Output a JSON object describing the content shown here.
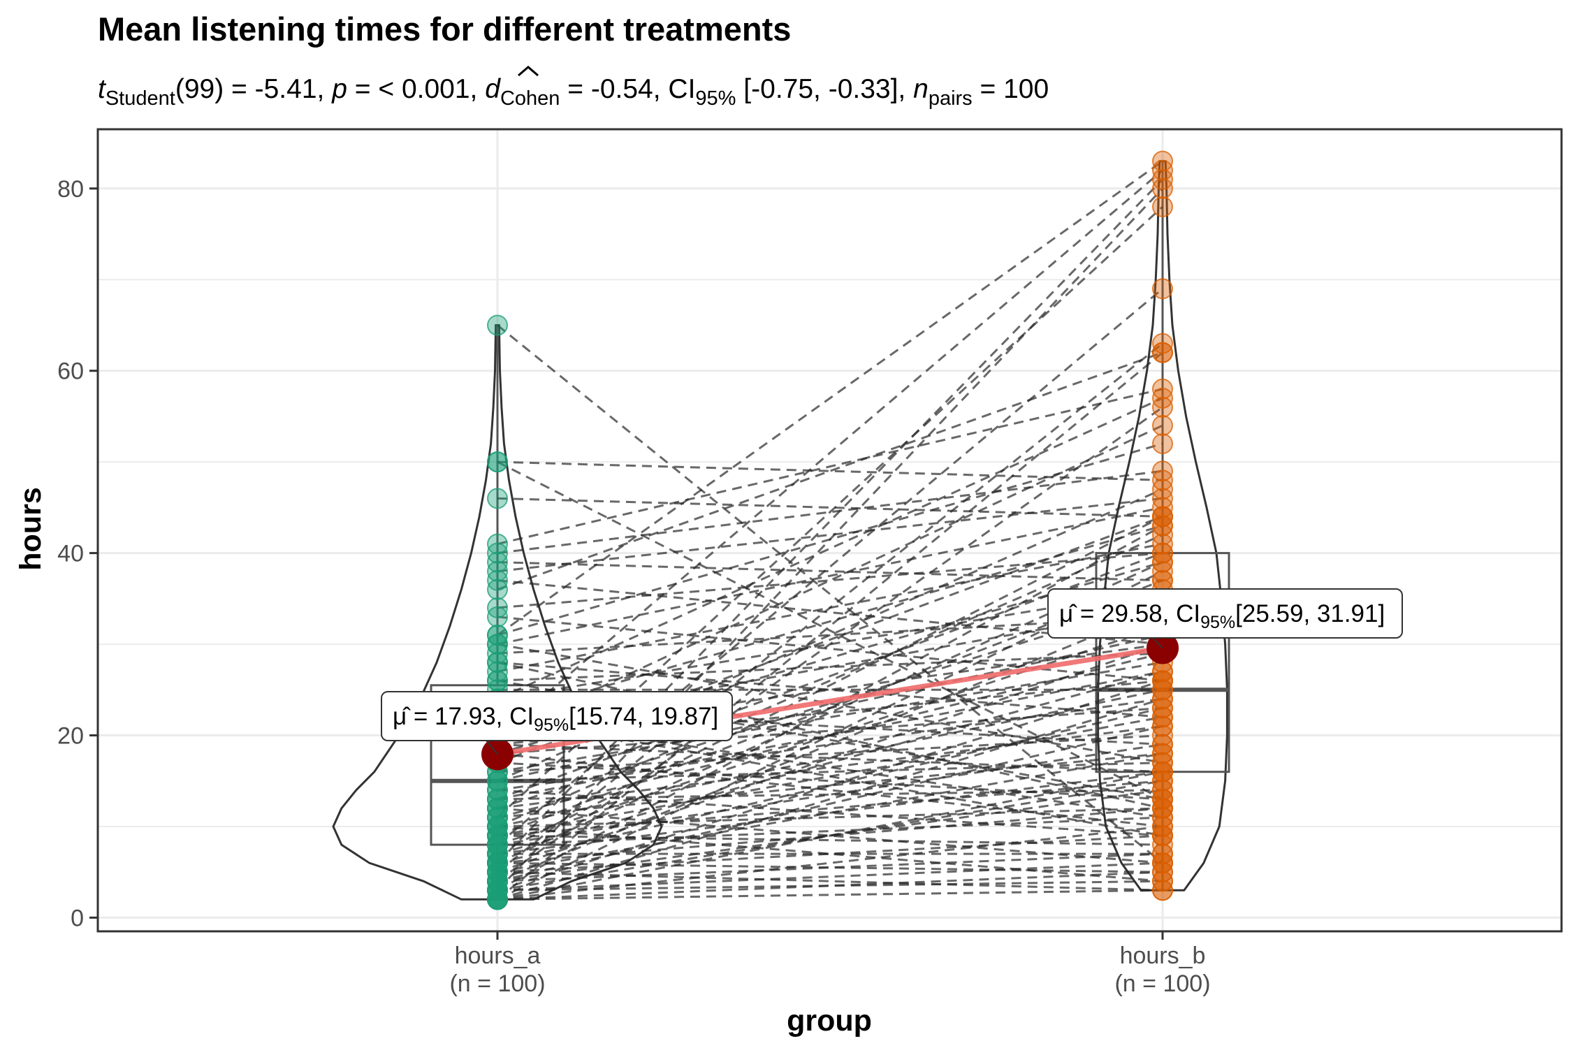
{
  "chart_data": {
    "type": "violin-box-paired",
    "title": "Mean listening times for different treatments",
    "subtitle": {
      "statistic_letter": "t",
      "statistic_sub": "Student",
      "df": "(99) = -5.41, ",
      "p_letter": "p",
      "p_value": " = < 0.001, ",
      "effect_letter": "d",
      "effect_sub": "Cohen",
      "effect_value": " = -0.54, CI",
      "ci_sub": "95%",
      "ci_value": " [-0.75, -0.33], ",
      "n_letter": "n",
      "n_sub": "pairs",
      "n_value": " = 100"
    },
    "xlabel": "group",
    "ylabel": "hours",
    "ylim": [
      -1.5,
      86.5
    ],
    "y_ticks": [
      0,
      20,
      40,
      60,
      80
    ],
    "y_tick_labels": [
      "0",
      "20",
      "40",
      "60",
      "80"
    ],
    "grid": true,
    "legend": "none",
    "groups": [
      {
        "key": "hours_a",
        "label": "hours_a",
        "n_label": "(n = 100)",
        "color": "#1b9e77",
        "mean": 17.93,
        "median": 15,
        "q1": 8,
        "q3": 25.5,
        "whisker_low": 2,
        "whisker_high": 65,
        "mean_label_prefix": "μ̂ = 17.93, CI",
        "mean_label_sub": "95%",
        "mean_label_suffix": "[15.74, 19.87]",
        "violin": [
          [
            2,
            0.22
          ],
          [
            4,
            0.45
          ],
          [
            6,
            0.78
          ],
          [
            8,
            0.95
          ],
          [
            10,
            1.0
          ],
          [
            12,
            0.95
          ],
          [
            14,
            0.86
          ],
          [
            16,
            0.75
          ],
          [
            20,
            0.6
          ],
          [
            24,
            0.47
          ],
          [
            28,
            0.37
          ],
          [
            32,
            0.29
          ],
          [
            36,
            0.22
          ],
          [
            40,
            0.16
          ],
          [
            44,
            0.11
          ],
          [
            48,
            0.07
          ],
          [
            52,
            0.04
          ],
          [
            56,
            0.025
          ],
          [
            60,
            0.015
          ],
          [
            65,
            0.01
          ]
        ]
      },
      {
        "key": "hours_b",
        "label": "hours_b",
        "n_label": "(n = 100)",
        "color": "#d95f02",
        "mean": 29.58,
        "median": 25,
        "q1": 16,
        "q3": 40,
        "whisker_low": 3,
        "whisker_high": 83,
        "mean_label_prefix": "μ̂ = 29.58, CI",
        "mean_label_sub": "95%",
        "mean_label_suffix": "[25.59, 31.91]",
        "violin": [
          [
            3,
            0.22
          ],
          [
            6,
            0.42
          ],
          [
            10,
            0.58
          ],
          [
            15,
            0.64
          ],
          [
            20,
            0.66
          ],
          [
            25,
            0.66
          ],
          [
            30,
            0.64
          ],
          [
            35,
            0.6
          ],
          [
            40,
            0.55
          ],
          [
            45,
            0.45
          ],
          [
            50,
            0.34
          ],
          [
            55,
            0.24
          ],
          [
            60,
            0.16
          ],
          [
            65,
            0.1
          ],
          [
            70,
            0.07
          ],
          [
            75,
            0.05
          ],
          [
            80,
            0.04
          ],
          [
            83,
            0.03
          ]
        ]
      }
    ],
    "pairs": [
      [
        65,
        6
      ],
      [
        50,
        48
      ],
      [
        50,
        13
      ],
      [
        46,
        44
      ],
      [
        41,
        58
      ],
      [
        40,
        49
      ],
      [
        39,
        37
      ],
      [
        38,
        46
      ],
      [
        37,
        30
      ],
      [
        36,
        62
      ],
      [
        34,
        40
      ],
      [
        33,
        26
      ],
      [
        31,
        83
      ],
      [
        31,
        52
      ],
      [
        30,
        45
      ],
      [
        30,
        17
      ],
      [
        29,
        33
      ],
      [
        28,
        22
      ],
      [
        27,
        41
      ],
      [
        26,
        29
      ],
      [
        25,
        25
      ],
      [
        24,
        36
      ],
      [
        23,
        19
      ],
      [
        22,
        43
      ],
      [
        22,
        11
      ],
      [
        21,
        34
      ],
      [
        20,
        30
      ],
      [
        20,
        82
      ],
      [
        19,
        26
      ],
      [
        19,
        16
      ],
      [
        18,
        39
      ],
      [
        18,
        23
      ],
      [
        17,
        44
      ],
      [
        17,
        13
      ],
      [
        16,
        28
      ],
      [
        16,
        20
      ],
      [
        15,
        47
      ],
      [
        15,
        31
      ],
      [
        15,
        17
      ],
      [
        14,
        24
      ],
      [
        14,
        9
      ],
      [
        13,
        40
      ],
      [
        13,
        27
      ],
      [
        13,
        14
      ],
      [
        12,
        35
      ],
      [
        12,
        21
      ],
      [
        12,
        6
      ],
      [
        11,
        78
      ],
      [
        11,
        29
      ],
      [
        11,
        18
      ],
      [
        10,
        42
      ],
      [
        10,
        25
      ],
      [
        10,
        12
      ],
      [
        10,
        4
      ],
      [
        9,
        37
      ],
      [
        9,
        22
      ],
      [
        9,
        15
      ],
      [
        9,
        8
      ],
      [
        8,
        69
      ],
      [
        8,
        32
      ],
      [
        8,
        19
      ],
      [
        8,
        11
      ],
      [
        7,
        44
      ],
      [
        7,
        27
      ],
      [
        7,
        16
      ],
      [
        7,
        7
      ],
      [
        6,
        81
      ],
      [
        6,
        39
      ],
      [
        6,
        23
      ],
      [
        6,
        12
      ],
      [
        6,
        5
      ],
      [
        5,
        63
      ],
      [
        5,
        30
      ],
      [
        5,
        18
      ],
      [
        5,
        9
      ],
      [
        5,
        3
      ],
      [
        4,
        56
      ],
      [
        4,
        34
      ],
      [
        4,
        21
      ],
      [
        4,
        14
      ],
      [
        4,
        7
      ],
      [
        3,
        80
      ],
      [
        3,
        43
      ],
      [
        3,
        26
      ],
      [
        3,
        15
      ],
      [
        3,
        6
      ],
      [
        3,
        4
      ],
      [
        2,
        62
      ],
      [
        2,
        38
      ],
      [
        2,
        24
      ],
      [
        2,
        16
      ],
      [
        2,
        10
      ],
      [
        2,
        3
      ],
      [
        2,
        5
      ],
      [
        22,
        9
      ],
      [
        26,
        13
      ],
      [
        18,
        10
      ],
      [
        20,
        54
      ],
      [
        24,
        57
      ],
      [
        28,
        12
      ]
    ]
  }
}
